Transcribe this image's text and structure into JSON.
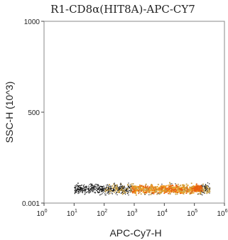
{
  "chart_data": {
    "type": "scatter",
    "title": "R1-CD8α(HIT8A)-APC-CY7",
    "xlabel": "APC-Cy7-H",
    "ylabel": "SSC-H (10^3)",
    "x_scale": "log",
    "xlim": [
      1,
      1000000
    ],
    "x_ticks": [
      {
        "base": "10",
        "exp": "0"
      },
      {
        "base": "10",
        "exp": "1"
      },
      {
        "base": "10",
        "exp": "2"
      },
      {
        "base": "10",
        "exp": "3"
      },
      {
        "base": "10",
        "exp": "4"
      },
      {
        "base": "10",
        "exp": "5"
      },
      {
        "base": "10",
        "exp": "6"
      }
    ],
    "y_scale": "linear",
    "ylim": [
      0.001,
      1000
    ],
    "y_ticks": [
      "1000",
      "500",
      "0.001"
    ],
    "grid": false,
    "legend": "none",
    "colors": {
      "sparse": "#1a1a1a",
      "low": "#c8a046",
      "mid": "#f0a020",
      "high": "#e86010"
    },
    "population": {
      "x_range_log": [
        1.0,
        5.5
      ],
      "x_center_log": [
        2.9,
        5.2
      ],
      "y_range": [
        30,
        140
      ],
      "y_center": 80
    }
  }
}
